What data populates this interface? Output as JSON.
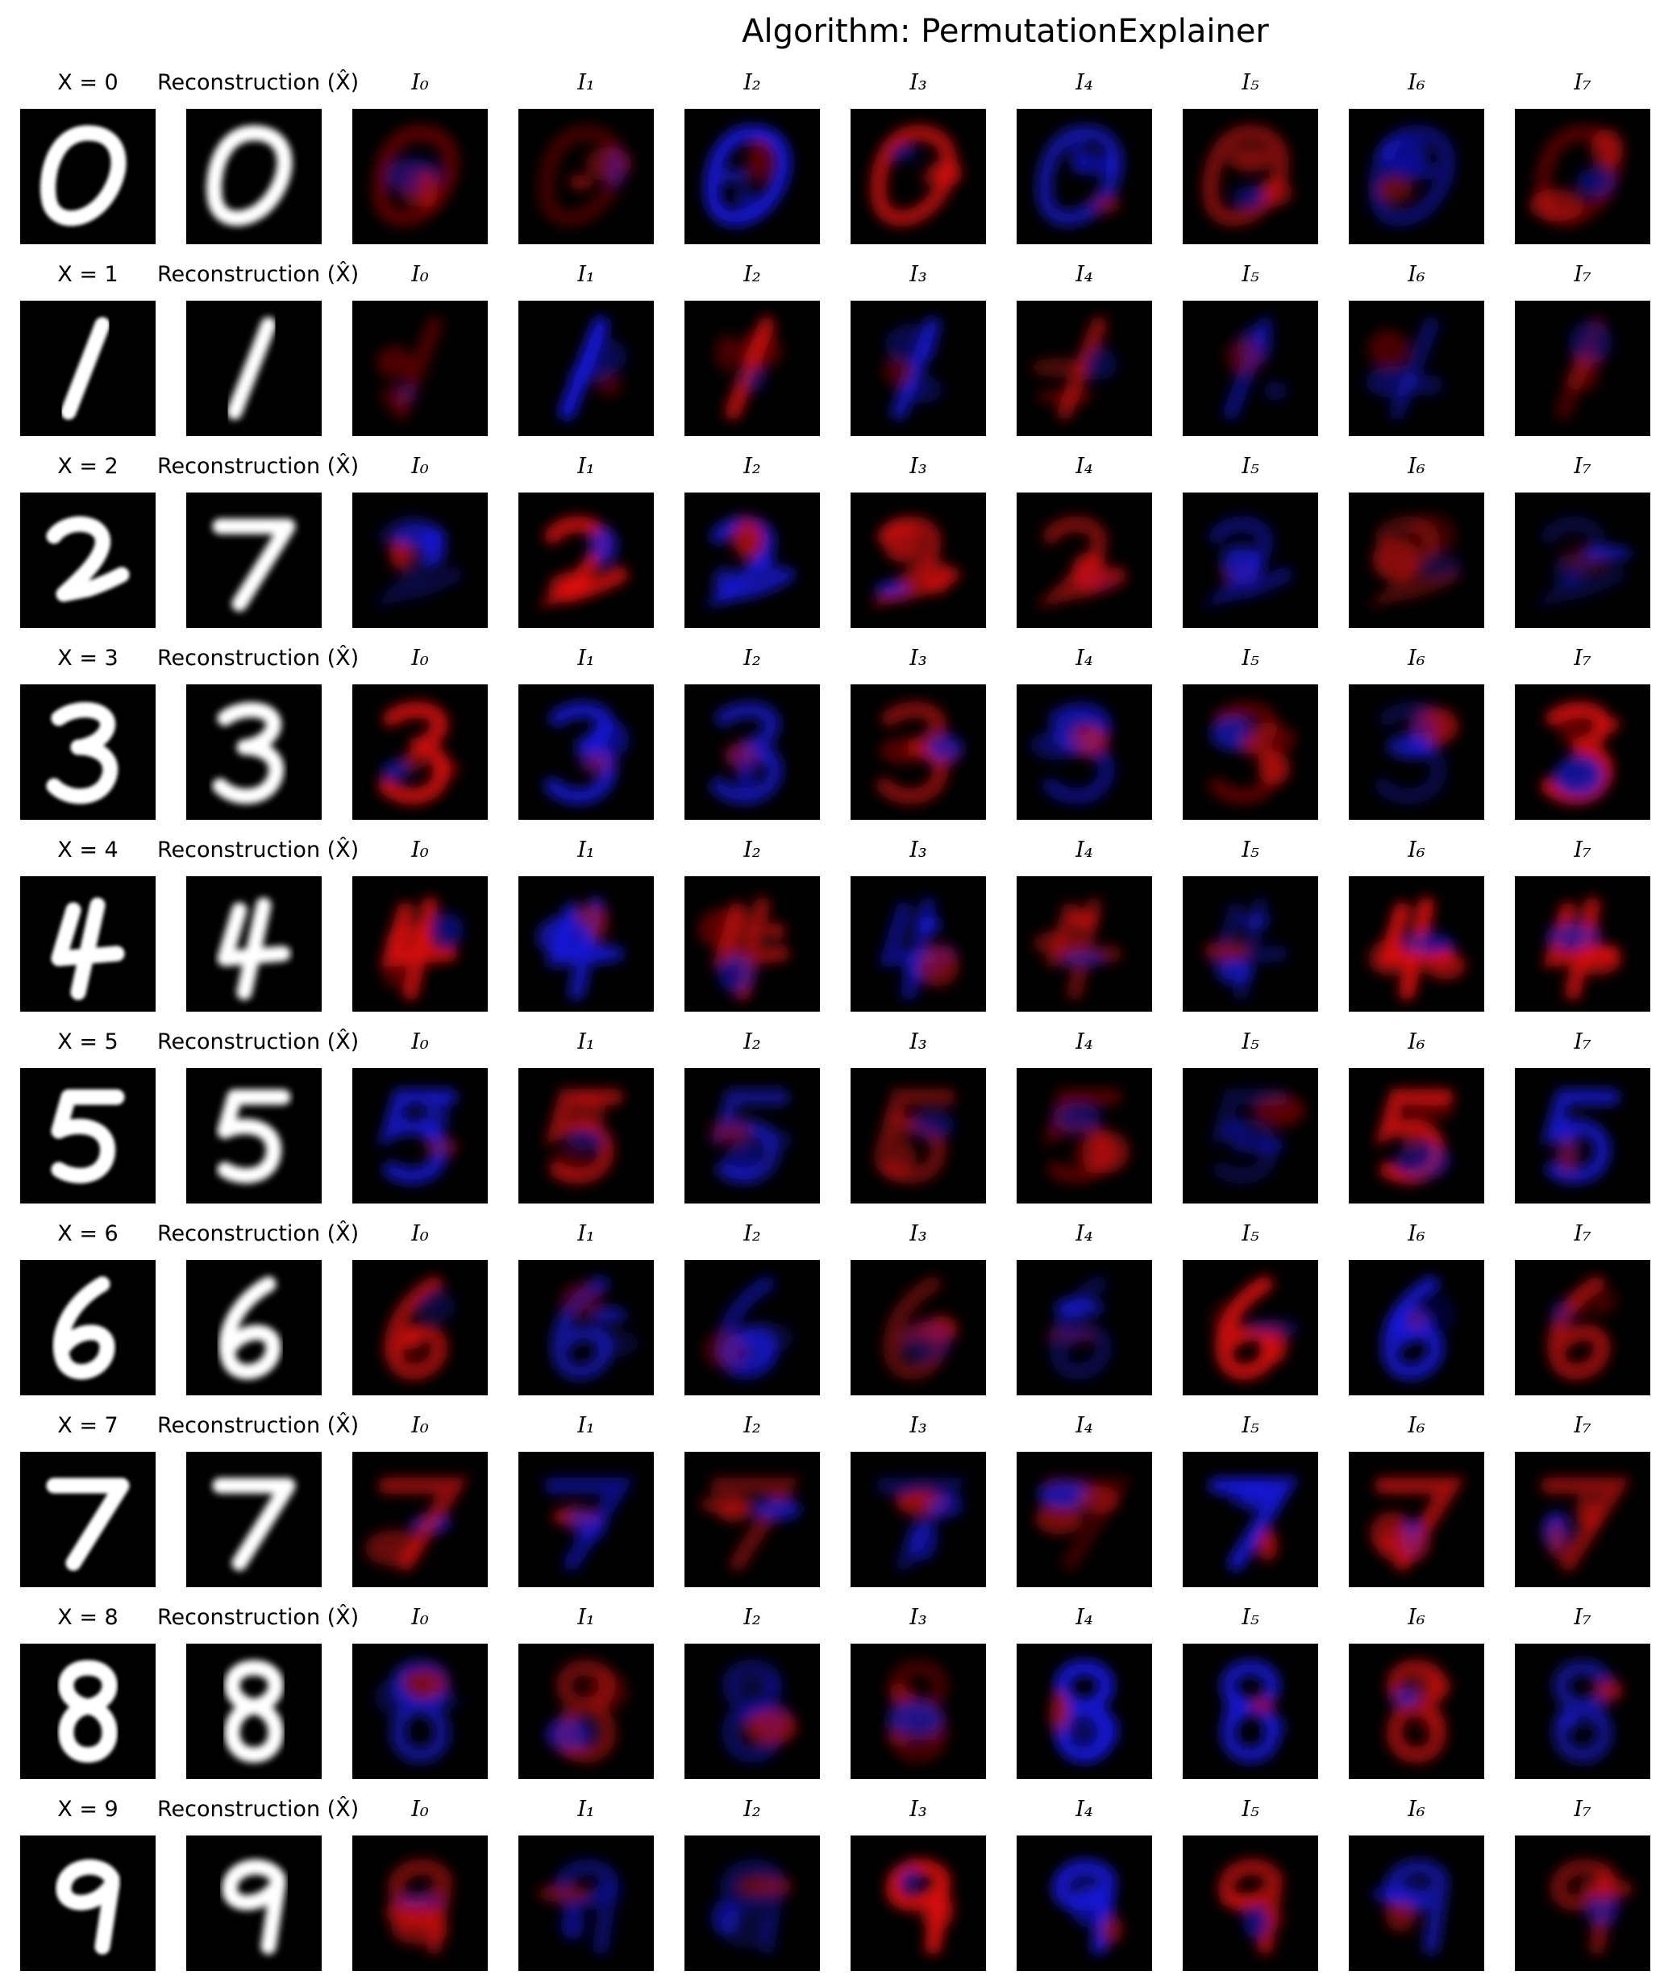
{
  "title": "Algorithm: PermutationExplainer",
  "input_label_prefix": "X = ",
  "reconstruction_label": "Reconstruction (X̂)",
  "feature_labels": [
    "I₀",
    "I₁",
    "I₂",
    "I₃",
    "I₄",
    "I₅",
    "I₆",
    "I₇"
  ],
  "rows": [
    {
      "digit": "0",
      "recon_digit": "0"
    },
    {
      "digit": "1",
      "recon_digit": "1"
    },
    {
      "digit": "2",
      "recon_digit": "7"
    },
    {
      "digit": "3",
      "recon_digit": "3"
    },
    {
      "digit": "4",
      "recon_digit": "4"
    },
    {
      "digit": "5",
      "recon_digit": "5"
    },
    {
      "digit": "6",
      "recon_digit": "6"
    },
    {
      "digit": "7",
      "recon_digit": "7"
    },
    {
      "digit": "8",
      "recon_digit": "8"
    },
    {
      "digit": "9",
      "recon_digit": "9"
    }
  ],
  "colors": {
    "positive": "#e01010",
    "negative": "#1a1aee",
    "background": "#000000",
    "digit": "#ffffff"
  }
}
